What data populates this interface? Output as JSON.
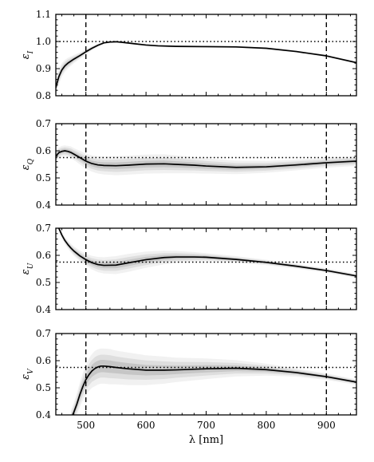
{
  "chart_data": {
    "type": "line",
    "xlabel": "λ [nm]",
    "xlim": [
      450,
      950
    ],
    "x_ticks": [
      500,
      600,
      700,
      800,
      900
    ],
    "x_tick_labels": [
      "500",
      "600",
      "700",
      "800",
      "900"
    ],
    "vlines": [
      500,
      900
    ],
    "panels": [
      {
        "ylabel": "ε_I",
        "ylabel_main": "ε",
        "ylabel_sub": "I",
        "ylim": [
          0.8,
          1.1
        ],
        "y_ticks": [
          0.8,
          0.9,
          1.0,
          1.1
        ],
        "y_tick_labels": [
          "0.8",
          "0.9",
          "1.0",
          "1.1"
        ],
        "hline": 1.0,
        "series": [
          {
            "x": [
              450,
              455,
              460,
              465,
              470,
              480,
              490,
              500,
              510,
              520,
              530,
              540,
              550,
              560,
              580,
              600,
              620,
              650,
              700,
              750,
              800,
              850,
              900,
              950
            ],
            "y": [
              0.83,
              0.87,
              0.895,
              0.91,
              0.92,
              0.935,
              0.948,
              0.962,
              0.975,
              0.986,
              0.995,
              0.998,
              0.999,
              0.997,
              0.992,
              0.987,
              0.984,
              0.982,
              0.981,
              0.98,
              0.975,
              0.963,
              0.947,
              0.922
            ]
          }
        ],
        "band_width": [
          0.03,
          0.028,
          0.025,
          0.022,
          0.02,
          0.015,
          0.012,
          0.01,
          0.008,
          0.006,
          0.005,
          0.004,
          0.004,
          0.004,
          0.004,
          0.004,
          0.004,
          0.004,
          0.004,
          0.004,
          0.004,
          0.004,
          0.004,
          0.004
        ]
      },
      {
        "ylabel": "ε_Q",
        "ylabel_main": "ε",
        "ylabel_sub": "Q",
        "ylim": [
          0.4,
          0.7
        ],
        "y_ticks": [
          0.4,
          0.5,
          0.6,
          0.7
        ],
        "y_tick_labels": [
          "0.4",
          "0.5",
          "0.6",
          "0.7"
        ],
        "hline": 0.575,
        "series": [
          {
            "x": [
              450,
              455,
              460,
              465,
              470,
              475,
              480,
              490,
              500,
              510,
              520,
              530,
              550,
              570,
              600,
              630,
              650,
              680,
              700,
              750,
              800,
              850,
              900,
              950
            ],
            "y": [
              0.58,
              0.593,
              0.598,
              0.6,
              0.598,
              0.594,
              0.588,
              0.575,
              0.562,
              0.553,
              0.548,
              0.546,
              0.545,
              0.547,
              0.551,
              0.552,
              0.55,
              0.547,
              0.544,
              0.539,
              0.541,
              0.548,
              0.556,
              0.562
            ]
          }
        ],
        "band_width": [
          0.02,
          0.02,
          0.02,
          0.02,
          0.02,
          0.022,
          0.022,
          0.025,
          0.028,
          0.03,
          0.032,
          0.033,
          0.035,
          0.035,
          0.035,
          0.035,
          0.033,
          0.03,
          0.028,
          0.025,
          0.022,
          0.02,
          0.018,
          0.018
        ]
      },
      {
        "ylabel": "ε_U",
        "ylabel_main": "ε",
        "ylabel_sub": "U",
        "ylim": [
          0.4,
          0.7
        ],
        "y_ticks": [
          0.4,
          0.5,
          0.6,
          0.7
        ],
        "y_tick_labels": [
          "0.4",
          "0.5",
          "0.6",
          "0.7"
        ],
        "hline": 0.575,
        "series": [
          {
            "x": [
              455,
              460,
              465,
              470,
              475,
              480,
              490,
              500,
              510,
              520,
              530,
              550,
              570,
              600,
              630,
              650,
              680,
              700,
              750,
              800,
              850,
              900,
              950
            ],
            "y": [
              0.7,
              0.675,
              0.655,
              0.64,
              0.627,
              0.616,
              0.598,
              0.584,
              0.573,
              0.566,
              0.563,
              0.564,
              0.572,
              0.584,
              0.592,
              0.594,
              0.594,
              0.593,
              0.585,
              0.574,
              0.56,
              0.544,
              0.524
            ]
          }
        ],
        "band_width": [
          0.01,
          0.012,
          0.013,
          0.015,
          0.016,
          0.017,
          0.02,
          0.022,
          0.025,
          0.028,
          0.03,
          0.033,
          0.033,
          0.03,
          0.025,
          0.022,
          0.018,
          0.015,
          0.012,
          0.01,
          0.009,
          0.008,
          0.008
        ]
      },
      {
        "ylabel": "ε_V",
        "ylabel_main": "ε",
        "ylabel_sub": "V",
        "ylim": [
          0.4,
          0.7
        ],
        "y_ticks": [
          0.4,
          0.5,
          0.6,
          0.7
        ],
        "y_tick_labels": [
          "0.4",
          "0.5",
          "0.6",
          "0.7"
        ],
        "hline": 0.575,
        "series": [
          {
            "x": [
              475,
              480,
              485,
              490,
              495,
              500,
              505,
              510,
              515,
              520,
              525,
              530,
              540,
              550,
              570,
              600,
              630,
              650,
              700,
              750,
              800,
              850,
              900,
              950
            ],
            "y": [
              0.385,
              0.41,
              0.44,
              0.475,
              0.505,
              0.53,
              0.548,
              0.562,
              0.571,
              0.577,
              0.58,
              0.58,
              0.578,
              0.575,
              0.57,
              0.565,
              0.565,
              0.566,
              0.57,
              0.572,
              0.567,
              0.556,
              0.541,
              0.521
            ]
          }
        ],
        "band_width": [
          0.03,
          0.035,
          0.04,
          0.045,
          0.05,
          0.055,
          0.06,
          0.062,
          0.065,
          0.065,
          0.065,
          0.065,
          0.065,
          0.062,
          0.06,
          0.055,
          0.05,
          0.045,
          0.038,
          0.03,
          0.022,
          0.015,
          0.012,
          0.01
        ]
      }
    ]
  }
}
